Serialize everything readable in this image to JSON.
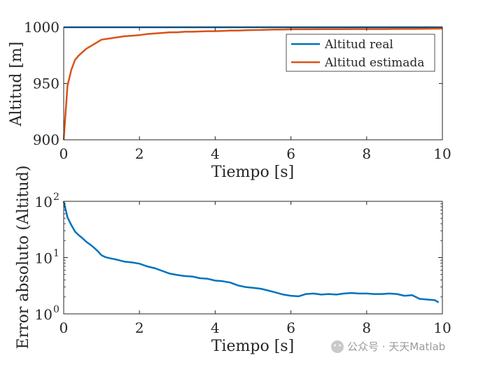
{
  "watermark": {
    "text": "公众号 · 天天Matlab"
  },
  "chart_data": [
    {
      "type": "line",
      "xlabel": "Tiempo [s]",
      "ylabel": "Altitud [m]",
      "xlim": [
        0,
        10
      ],
      "ylim": [
        900,
        1000
      ],
      "xticks": [
        "0",
        "2",
        "4",
        "6",
        "8",
        "10"
      ],
      "yticks": [
        "900",
        "950",
        "1000"
      ],
      "grid": false,
      "legend_position": "top-right",
      "series": [
        {
          "name": "Altitud real",
          "color": "#0072BD",
          "x": [
            0,
            10
          ],
          "y": [
            1000,
            1000
          ]
        },
        {
          "name": "Altitud estimada",
          "color": "#D95319",
          "x": [
            0,
            0.1,
            0.2,
            0.3,
            0.4,
            0.5,
            0.6,
            0.7,
            0.8,
            0.9,
            1.0,
            1.2,
            1.4,
            1.6,
            1.8,
            2.0,
            2.2,
            2.4,
            2.6,
            2.8,
            3.0,
            3.2,
            3.4,
            3.6,
            3.8,
            4.0,
            4.2,
            4.4,
            4.6,
            4.8,
            5.0,
            5.2,
            5.4,
            5.6,
            5.8,
            6.0,
            6.4,
            6.8,
            7.2,
            7.6,
            8.0,
            8.4,
            8.8,
            9.2,
            9.6,
            10.0
          ],
          "y": [
            900,
            948,
            962,
            971,
            975,
            978,
            981,
            983,
            985,
            987,
            989,
            990,
            991,
            992,
            992.5,
            993,
            994,
            994.5,
            995,
            995.5,
            995.5,
            996,
            996,
            996.3,
            996.5,
            996.5,
            996.8,
            997,
            997,
            997.3,
            997.5,
            997.6,
            997.8,
            998,
            998,
            998.2,
            998.2,
            998.3,
            998.3,
            998.4,
            998.4,
            998.4,
            998.5,
            998.5,
            998.7,
            998.8
          ]
        }
      ]
    },
    {
      "type": "line",
      "xlabel": "Tiempo [s]",
      "ylabel": "Error absoluto (Altitud)",
      "xlim": [
        0,
        10
      ],
      "ylim": [
        1,
        100
      ],
      "yscale": "log",
      "xticks": [
        "0",
        "2",
        "4",
        "6",
        "8",
        "10"
      ],
      "yticks": [
        {
          "base": "10",
          "exp": "0",
          "value": 1
        },
        {
          "base": "10",
          "exp": "1",
          "value": 10
        },
        {
          "base": "10",
          "exp": "2",
          "value": 100
        }
      ],
      "grid": false,
      "series": [
        {
          "color": "#0072BD",
          "x": [
            0,
            0.1,
            0.2,
            0.3,
            0.4,
            0.5,
            0.6,
            0.7,
            0.8,
            0.9,
            1.0,
            1.1,
            1.2,
            1.4,
            1.6,
            1.8,
            2.0,
            2.2,
            2.4,
            2.6,
            2.8,
            3.0,
            3.2,
            3.4,
            3.6,
            3.8,
            4.0,
            4.2,
            4.4,
            4.6,
            4.8,
            5.0,
            5.2,
            5.4,
            5.6,
            5.8,
            6.0,
            6.2,
            6.4,
            6.6,
            6.8,
            7.0,
            7.2,
            7.4,
            7.6,
            7.8,
            8.0,
            8.2,
            8.4,
            8.6,
            8.8,
            9.0,
            9.2,
            9.4,
            9.6,
            9.8,
            9.9
          ],
          "y": [
            100,
            52,
            38,
            29,
            25,
            22,
            19,
            17,
            15,
            13,
            11,
            10.2,
            9.8,
            9.2,
            8.5,
            8.2,
            7.8,
            7,
            6.5,
            5.8,
            5.2,
            4.9,
            4.7,
            4.6,
            4.3,
            4.2,
            3.9,
            3.8,
            3.6,
            3.2,
            3.0,
            2.9,
            2.8,
            2.6,
            2.4,
            2.2,
            2.1,
            2.05,
            2.25,
            2.3,
            2.2,
            2.25,
            2.2,
            2.3,
            2.35,
            2.3,
            2.3,
            2.25,
            2.25,
            2.3,
            2.25,
            2.1,
            2.15,
            1.85,
            1.8,
            1.75,
            1.6
          ]
        }
      ]
    }
  ]
}
